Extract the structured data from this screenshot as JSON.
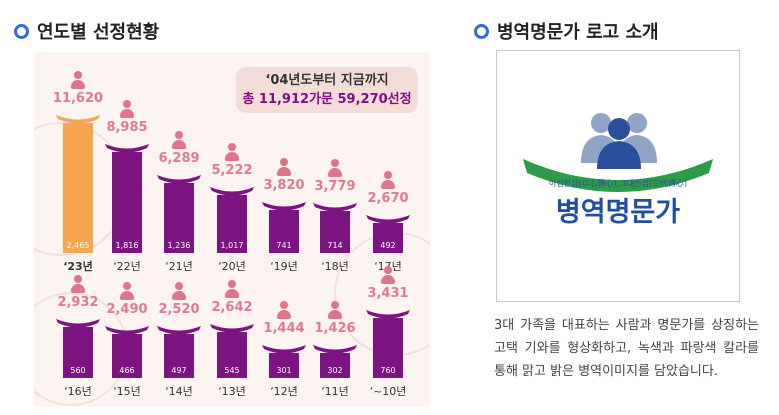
{
  "left_section": {
    "title": "연도별 선정현황"
  },
  "right_section": {
    "title": "병역명문가 로고 소개"
  },
  "callout": {
    "line1": "‘04년도부터 지금까지",
    "line2": "총 11,912가문 59,270선정"
  },
  "colors": {
    "accent_purple": "#7b1380",
    "highlight_orange": "#f5a64e",
    "value_pink": "#e07a8c",
    "bullet_blue": "#2f6fd0"
  },
  "chart_data": {
    "type": "bar",
    "rows": [
      {
        "years": [
          "‘23년",
          "‘22년",
          "‘21년",
          "‘20년",
          "‘19년",
          "‘18년",
          "‘17년"
        ],
        "values": [
          11620,
          8985,
          6289,
          5222,
          3820,
          3779,
          2670
        ],
        "value_labels": [
          "11,620",
          "8,985",
          "6,289",
          "5,222",
          "3,820",
          "3,779",
          "2,670"
        ],
        "family_counts": [
          "2,465",
          "1,816",
          "1,236",
          "1,017",
          "741",
          "714",
          "492"
        ]
      },
      {
        "years": [
          "‘16년",
          "‘15년",
          "‘14년",
          "‘13년",
          "‘12년",
          "‘11년",
          "‘~10년"
        ],
        "values": [
          2932,
          2490,
          2520,
          2642,
          1444,
          1426,
          3431
        ],
        "value_labels": [
          "2,932",
          "2,490",
          "2,520",
          "2,642",
          "1,444",
          "1,426",
          "3,431"
        ],
        "family_counts": [
          "560",
          "466",
          "497",
          "545",
          "301",
          "302",
          "760"
        ]
      }
    ]
  },
  "logo": {
    "slogan": "이심전심(以心傳心), 3대전심(三代傳心)",
    "name": "병역명문가",
    "icon": "three-generations-people-icon"
  },
  "description": "3대 가족을 대표하는 사람과 명문가를 상징하는 고택 기와를 형상화하고, 녹색과 파랑색 칼라를 통해 맑고 밝은 병역이미지를 담았습니다."
}
